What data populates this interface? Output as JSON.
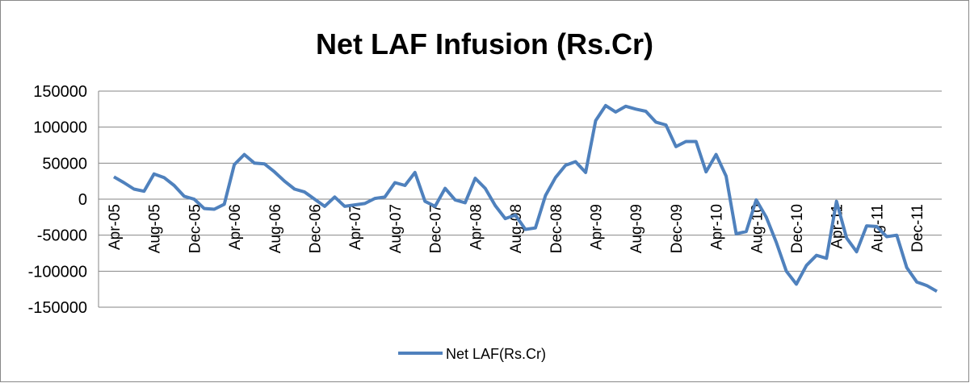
{
  "chart_data": {
    "type": "line",
    "title": "Net LAF Infusion (Rs.Cr)",
    "categories": [
      "Apr-05",
      null,
      null,
      null,
      "Aug-05",
      null,
      null,
      null,
      "Dec-05",
      null,
      null,
      null,
      "Apr-06",
      null,
      null,
      null,
      "Aug-06",
      null,
      null,
      null,
      "Dec-06",
      null,
      null,
      null,
      "Apr-07",
      null,
      null,
      null,
      "Aug-07",
      null,
      null,
      null,
      "Dec-07",
      null,
      null,
      null,
      "Apr-08",
      null,
      null,
      null,
      "Aug-08",
      null,
      null,
      null,
      "Dec-08",
      null,
      null,
      null,
      "Apr-09",
      null,
      null,
      null,
      "Aug-09",
      null,
      null,
      null,
      "Dec-09",
      null,
      null,
      null,
      "Apr-10",
      null,
      null,
      null,
      "Aug-10",
      null,
      null,
      null,
      "Dec-10",
      null,
      null,
      null,
      "Apr-11",
      null,
      null,
      null,
      "Aug-11",
      null,
      null,
      null,
      "Dec-11",
      null,
      null
    ],
    "series": [
      {
        "name": "Net LAF(Rs.Cr)",
        "color": "#4f81bd",
        "values": [
          31000,
          23000,
          14000,
          11000,
          35000,
          30000,
          19000,
          4000,
          0,
          -13000,
          -14000,
          -7000,
          48000,
          62000,
          50000,
          49000,
          38000,
          25000,
          14000,
          10000,
          0,
          -10000,
          3000,
          -10000,
          -8000,
          -6000,
          1000,
          3000,
          23000,
          19000,
          37000,
          -3000,
          -10000,
          15000,
          -1000,
          -5000,
          29000,
          15000,
          -9000,
          -27000,
          -22000,
          -42000,
          -40000,
          5000,
          30000,
          47000,
          52000,
          37000,
          109000,
          130000,
          121000,
          129000,
          125000,
          122000,
          107000,
          103000,
          73000,
          80000,
          80000,
          38000,
          62000,
          32000,
          -48000,
          -45000,
          -1000,
          -25000,
          -60000,
          -100000,
          -118000,
          -92000,
          -78000,
          -82000,
          -3000,
          -54000,
          -73000,
          -37000,
          -38000,
          -52000,
          -50000,
          -95000,
          -115000,
          -120000,
          -128000
        ]
      }
    ],
    "ylim": [
      -150000,
      150000
    ],
    "yticks": [
      -150000,
      -100000,
      -50000,
      0,
      50000,
      100000,
      150000
    ],
    "grid": true,
    "legend": "bottom"
  }
}
